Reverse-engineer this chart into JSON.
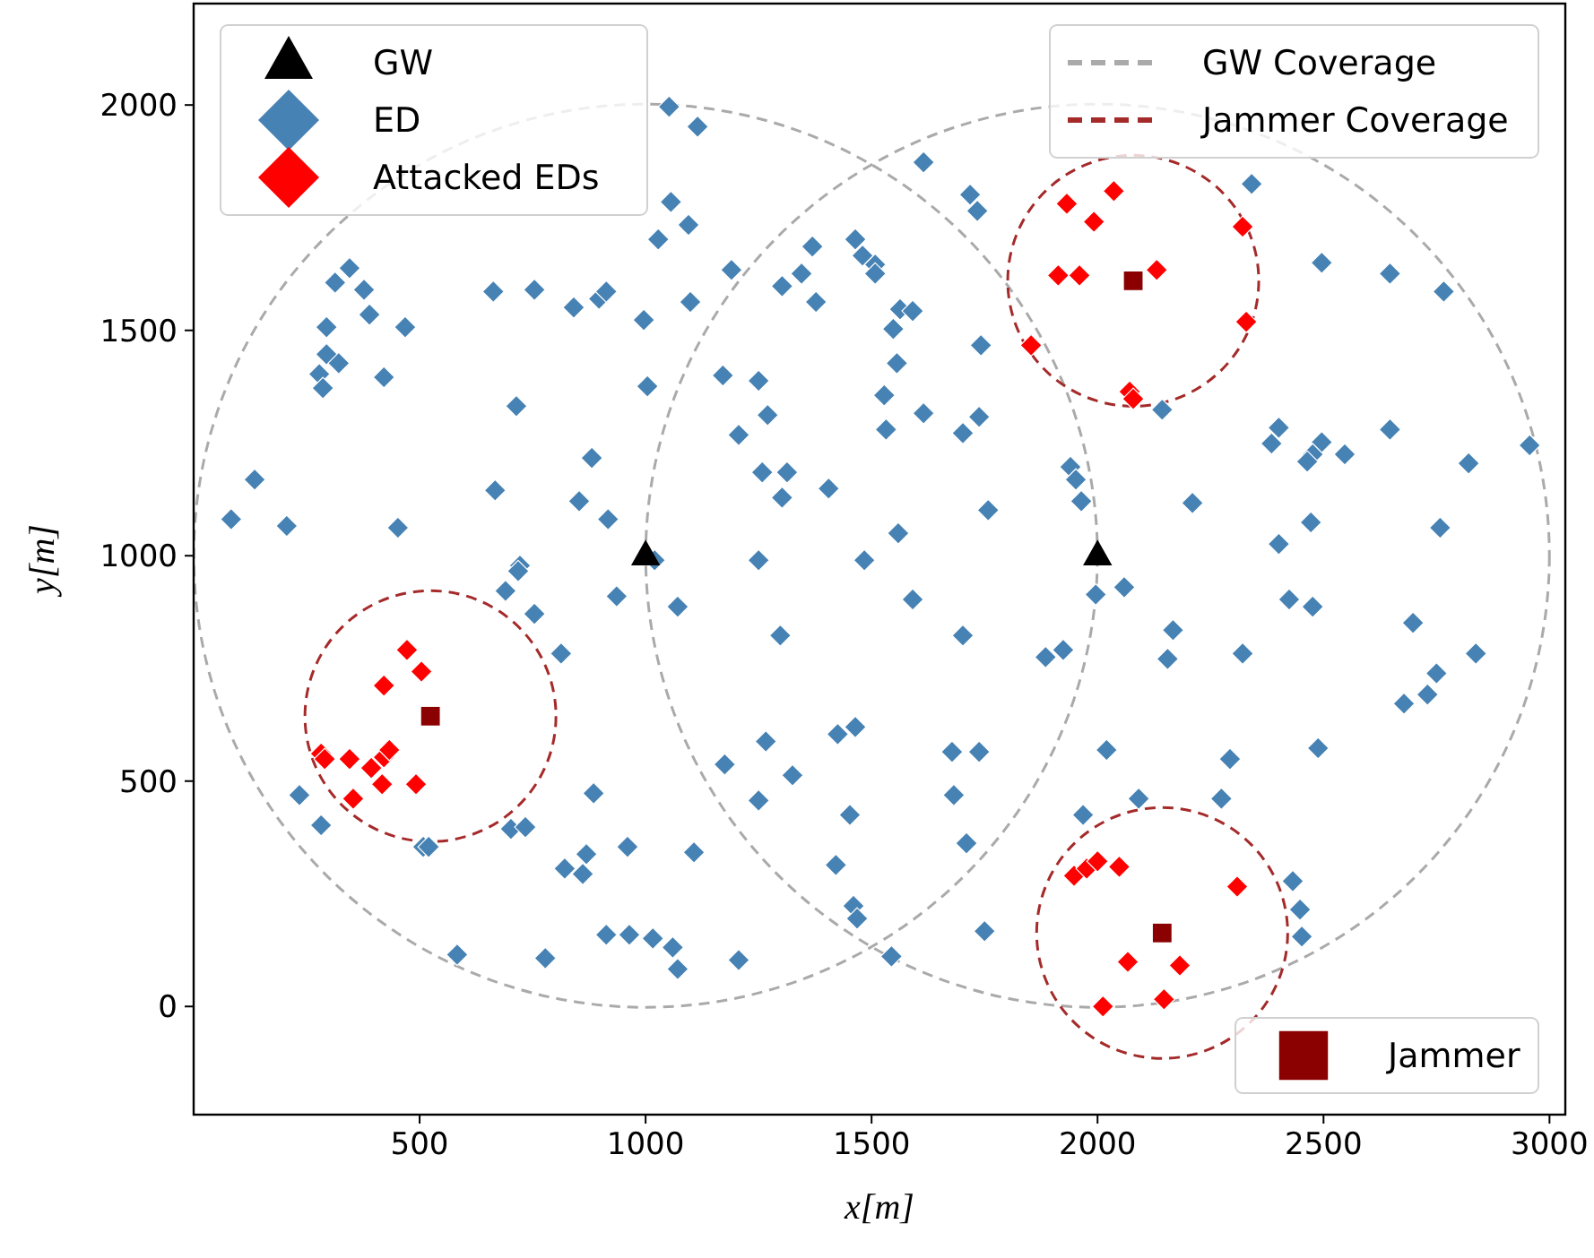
{
  "chart_data": {
    "type": "scatter",
    "xlabel": "x[m]",
    "ylabel": "y[m]",
    "xlim": [
      0,
      3035
    ],
    "ylim": [
      -240,
      2225
    ],
    "xticks": [
      500,
      1000,
      1500,
      2000,
      2500,
      3000
    ],
    "yticks": [
      0,
      500,
      1000,
      1500,
      2000
    ],
    "grid": false,
    "legend": "top left",
    "annotations": [
      "GW Coverage",
      "Jammer Coverage"
    ],
    "series": [
      {
        "name": "GW",
        "marker": "triangle",
        "color": "#000000",
        "x": [
          1000,
          2000
        ],
        "values": [
          1000,
          1000
        ]
      },
      {
        "name": "ED",
        "marker": "diamond",
        "color": "#4682b4",
        "x": [
          null,
          null,
          null,
          null,
          null,
          345,
          313,
          377,
          389,
          294,
          468,
          663,
          754,
          841,
          897,
          913,
          996,
          294,
          321,
          278,
          286,
          421,
          714,
          1004,
          881,
          667,
          853,
          917,
          135,
          83,
          206,
          452,
          722,
          1052,
          1115,
          1056,
          1095,
          1028,
          1190,
          1369,
          1345,
          1302,
          1377,
          1464,
          1480,
          1508,
          1508,
          1099,
          1615,
          1718,
          1734,
          1563,
          1591,
          1548,
          1742,
          1556,
          1171,
          1250,
          1270,
          1206,
          1528,
          1615,
          1738,
          1702,
          1532,
          1258,
          1313,
          1302,
          1405,
          1940,
          1952,
          1964,
          1758,
          1559,
          1250,
          1484,
          1020,
          null,
          null,
          2341,
          2496,
          2647,
          2766,
          2143,
          2401,
          2385,
          2496,
          2476,
          2464,
          2547,
          2647,
          2821,
          2956,
          2210,
          2472,
          2758,
          2401,
          718,
          690,
          936,
          754,
          813,
          234,
          282,
          508,
          520,
          702,
          734,
          885,
          960,
          821,
          869,
          861,
          913,
          964,
          1016,
          583,
          778,
          1071,
          1591,
          1298,
          1702,
          1885,
          1924,
          1996,
          1266,
          1175,
          1325,
          1250,
          1425,
          1464,
          1452,
          1678,
          1738,
          1682,
          1710,
          1107,
          1421,
          1460,
          1468,
          1060,
          1071,
          1206,
          1544,
          1750,
          1968,
          2020,
          2059,
          2424,
          2476,
          2698,
          2837,
          2750,
          2730,
          2678,
          2167,
          2155,
          2321,
          2293,
          2488,
          2091,
          2274,
          2432,
          2448,
          2452
        ],
        "values": [
          null,
          null,
          null,
          null,
          null,
          1638,
          1606,
          1590,
          1535,
          1507,
          1507,
          1586,
          1590,
          1551,
          1570,
          1586,
          1523,
          1447,
          1427,
          1403,
          1372,
          1396,
          1332,
          1376,
          1217,
          1145,
          1121,
          1081,
          1169,
          1081,
          1066,
          1062,
          978,
          1996,
          1952,
          1785,
          1734,
          1702,
          1634,
          1686,
          1626,
          1598,
          1563,
          1702,
          1666,
          1646,
          1626,
          1563,
          1873,
          1801,
          1765,
          1547,
          1543,
          1503,
          1467,
          1427,
          1400,
          1388,
          1312,
          1268,
          1356,
          1316,
          1308,
          1272,
          1280,
          1185,
          1185,
          1129,
          1149,
          1197,
          1169,
          1121,
          1101,
          1050,
          990,
          990,
          990,
          null,
          null,
          1825,
          1650,
          1626,
          1586,
          1324,
          1284,
          1249,
          1252,
          1225,
          1209,
          1225,
          1280,
          1205,
          1245,
          1117,
          1074,
          1062,
          1026,
          966,
          922,
          910,
          871,
          783,
          469,
          402,
          354,
          354,
          394,
          398,
          473,
          354,
          306,
          338,
          294,
          159,
          159,
          151,
          115,
          107,
          887,
          903,
          823,
          823,
          775,
          791,
          914,
          588,
          537,
          513,
          457,
          604,
          620,
          425,
          565,
          565,
          469,
          362,
          342,
          314,
          223,
          195,
          131,
          83,
          103,
          111,
          167,
          425,
          569,
          930,
          903,
          887,
          851,
          783,
          739,
          692,
          672,
          835,
          771,
          783,
          549,
          573,
          461,
          461,
          278,
          215,
          155
        ]
      },
      {
        "name": "Attacked EDs",
        "marker": "diamond",
        "color": "#ff0000",
        "x": [
          1932,
          1992,
          1913,
          1960,
          1853,
          2036,
          2321,
          2131,
          2329,
          2071,
          2079,
          472,
          504,
          421,
          282,
          290,
          345,
          393,
          421,
          433,
          417,
          492,
          353,
          1948,
          1976,
          2000,
          2048,
          2012,
          2309,
          2067,
          2182,
          2147
        ],
        "values": [
          1781,
          1741,
          1622,
          1622,
          1467,
          1809,
          1730,
          1634,
          1519,
          1364,
          1348,
          791,
          743,
          712,
          561,
          549,
          549,
          529,
          553,
          569,
          493,
          493,
          461,
          290,
          306,
          322,
          310,
          0,
          266,
          99,
          91,
          16
        ]
      },
      {
        "name": "Jammer",
        "marker": "square",
        "color": "#8b0000",
        "x": [
          2079,
          524,
          2143
        ],
        "values": [
          1610,
          644,
          163
        ]
      }
    ]
  }
}
